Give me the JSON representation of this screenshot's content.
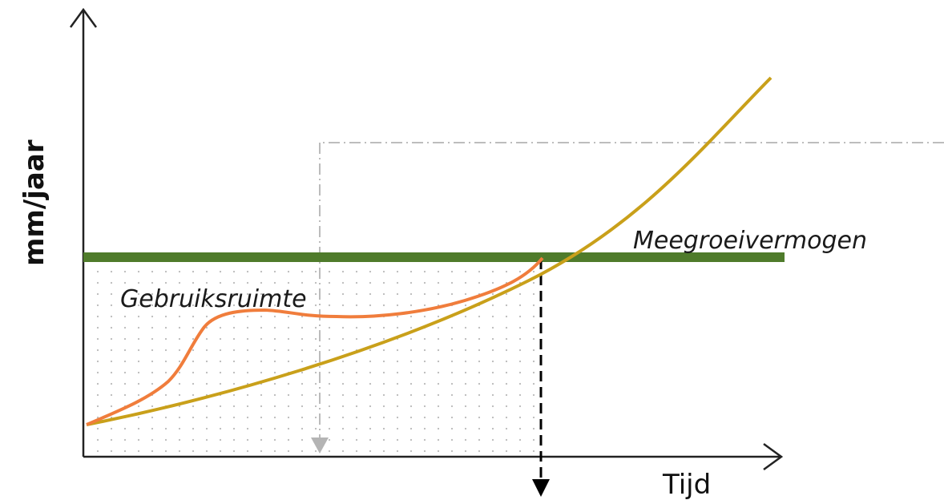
{
  "labels": {
    "y_axis": "mm/jaar",
    "x_axis": "Tijd",
    "capacity": "Meegroeivermogen",
    "usage_space": "Gebruiksruimte"
  },
  "colors": {
    "capacity_line": "#4f7b2b",
    "usage_curve": "#f07d3c",
    "rise_curve": "#c9a01a",
    "axis": "#222222",
    "reference_line": "#b4b4b4",
    "marker_line": "#000000",
    "dots": "#b9b9b9"
  }
}
